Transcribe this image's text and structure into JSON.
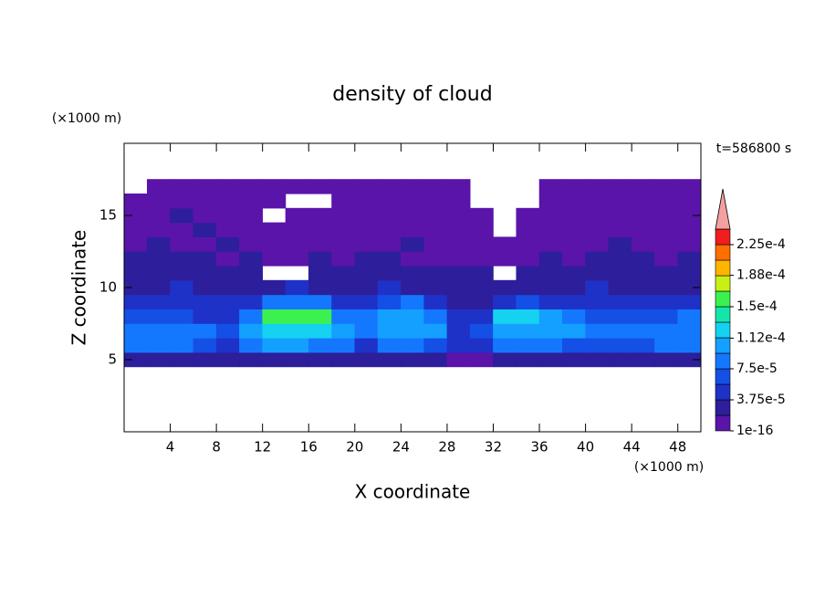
{
  "chart_data": {
    "type": "contour",
    "title": "density of cloud",
    "x_label": "X coordinate",
    "y_label": "Z coordinate",
    "x_unit": "(×1000 m)",
    "y_unit": "(×1000 m)",
    "annotation": "t=586800 s",
    "xlim": [
      0,
      50
    ],
    "ylim": [
      0,
      20
    ],
    "xticks": [
      4,
      8,
      12,
      16,
      20,
      24,
      28,
      32,
      36,
      40,
      44,
      48
    ],
    "yticks": [
      5,
      10,
      15
    ],
    "x": [
      1,
      3,
      5,
      7,
      9,
      11,
      13,
      15,
      17,
      19,
      21,
      23,
      25,
      27,
      29,
      31,
      33,
      35,
      37,
      39,
      41,
      43,
      45,
      47,
      49
    ],
    "y": [
      5,
      6,
      7,
      8,
      9,
      10,
      11,
      12,
      13,
      14,
      15,
      16,
      17
    ],
    "z": [
      [
        3e-05,
        3e-05,
        3e-05,
        3e-05,
        2e-05,
        2e-05,
        2e-05,
        2e-05,
        2e-05,
        2e-05,
        2e-05,
        2e-05,
        2e-05,
        2e-05,
        1e-05,
        1e-05,
        2e-05,
        2e-05,
        2e-05,
        2e-05,
        2e-05,
        2e-05,
        2e-05,
        2e-05,
        2e-05
      ],
      [
        8e-05,
        8e-05,
        8e-05,
        7e-05,
        4e-05,
        9e-05,
        0.0001,
        0.0001,
        9e-05,
        8e-05,
        5e-05,
        8e-05,
        8e-05,
        7e-05,
        4e-05,
        5e-05,
        8e-05,
        9e-05,
        8e-05,
        7e-05,
        7e-05,
        7e-05,
        7e-05,
        8e-05,
        8e-05
      ],
      [
        8e-05,
        9e-05,
        9e-05,
        8e-05,
        6e-05,
        0.00011,
        0.00012,
        0.00012,
        0.00012,
        0.00011,
        9e-05,
        0.0001,
        0.00011,
        0.0001,
        5e-05,
        6e-05,
        0.00011,
        0.00011,
        0.0001,
        0.0001,
        9e-05,
        8e-05,
        8e-05,
        9e-05,
        9e-05
      ],
      [
        6e-05,
        7e-05,
        6e-05,
        5e-05,
        4e-05,
        9e-05,
        0.00015,
        0.00016,
        0.00015,
        9e-05,
        8e-05,
        0.0001,
        0.00011,
        9e-05,
        4e-05,
        4e-05,
        0.00012,
        0.00013,
        0.00011,
        8e-05,
        7e-05,
        6e-05,
        7e-05,
        6e-05,
        8e-05
      ],
      [
        4e-05,
        5e-05,
        4e-05,
        5e-05,
        4e-05,
        4e-05,
        8e-05,
        9e-05,
        9e-05,
        5e-05,
        4e-05,
        6e-05,
        8e-05,
        5e-05,
        3e-05,
        3e-05,
        5e-05,
        7e-05,
        5e-05,
        4e-05,
        4e-05,
        4e-05,
        5e-05,
        4e-05,
        4e-05
      ],
      [
        3e-05,
        3e-05,
        4e-05,
        3e-05,
        3e-05,
        3e-05,
        3e-05,
        4e-05,
        3e-05,
        3e-05,
        3e-05,
        4e-05,
        3e-05,
        3e-05,
        2e-05,
        2e-05,
        3e-05,
        3e-05,
        3e-05,
        3e-05,
        4e-05,
        3e-05,
        3e-05,
        3e-05,
        3e-05
      ],
      [
        2e-05,
        3e-05,
        2e-05,
        2e-05,
        2e-05,
        2e-05,
        0,
        0,
        2e-05,
        2e-05,
        2e-05,
        2e-05,
        2e-05,
        2e-05,
        2e-05,
        2e-05,
        0,
        2e-05,
        2e-05,
        2e-05,
        3e-05,
        2e-05,
        2e-05,
        2e-05,
        2e-05
      ],
      [
        2e-05,
        2e-05,
        2e-05,
        2e-05,
        1e-05,
        2e-05,
        1e-05,
        1e-05,
        2e-05,
        1e-05,
        2e-05,
        2e-05,
        1e-05,
        1e-05,
        1e-05,
        1e-05,
        1e-05,
        1e-05,
        2e-05,
        1e-05,
        2e-05,
        2e-05,
        2e-05,
        1e-05,
        2e-05
      ],
      [
        1e-05,
        2e-05,
        1e-05,
        1e-05,
        2e-05,
        1e-05,
        1e-05,
        1e-05,
        1e-05,
        1e-05,
        1e-05,
        1e-05,
        2e-05,
        1e-05,
        1e-05,
        1e-05,
        1e-05,
        1e-05,
        1e-05,
        1e-05,
        1e-05,
        2e-05,
        1e-05,
        1e-05,
        1e-05
      ],
      [
        1e-05,
        1e-05,
        1e-05,
        2e-05,
        1e-05,
        1e-05,
        1e-05,
        1e-05,
        1e-05,
        1e-05,
        1e-05,
        1e-05,
        1e-05,
        1e-05,
        1e-05,
        1e-05,
        0,
        1e-05,
        1e-05,
        1e-05,
        1e-05,
        1e-05,
        1e-05,
        1e-05,
        1e-05
      ],
      [
        1e-05,
        1e-05,
        2e-05,
        1e-05,
        1e-05,
        1e-05,
        0,
        1e-05,
        1e-05,
        1e-05,
        1e-05,
        1e-05,
        1e-05,
        1e-05,
        1e-05,
        1e-05,
        0,
        1e-05,
        1e-05,
        1e-05,
        1e-05,
        1e-05,
        1e-05,
        1e-05,
        1e-05
      ],
      [
        1e-05,
        1e-05,
        1e-05,
        1e-05,
        1e-05,
        1e-05,
        1e-05,
        0,
        0,
        1e-05,
        1e-05,
        1e-05,
        1e-05,
        1e-05,
        1e-05,
        0,
        0,
        0,
        1e-05,
        1e-05,
        1e-05,
        1e-05,
        1e-05,
        1e-05,
        1e-05
      ],
      [
        0,
        1e-05,
        1e-05,
        1e-05,
        1e-05,
        1e-05,
        1e-05,
        1e-05,
        1e-05,
        1e-05,
        1e-05,
        1e-05,
        1e-05,
        1e-05,
        1e-05,
        0,
        0,
        0,
        1e-05,
        1e-05,
        1e-05,
        1e-05,
        1e-05,
        1e-05,
        1e-05
      ]
    ],
    "levels": [
      1e-16,
      1.875e-05,
      3.75e-05,
      5.625e-05,
      7.5e-05,
      9.375e-05,
      0.0001125,
      0.00013125,
      0.00015,
      0.00016875,
      0.0001875,
      0.00020625,
      0.000225,
      0.00024375
    ],
    "colors": [
      "#5a14aa",
      "#2d1e9b",
      "#1e32c8",
      "#1450e6",
      "#1478ff",
      "#14a0ff",
      "#14d2f0",
      "#14e6aa",
      "#3cf050",
      "#c8f014",
      "#ffb400",
      "#ff6e00",
      "#f01e1e"
    ],
    "extend_color": "#f4a0a0",
    "colorbar_ticks": [
      1e-16,
      {
        "value": 3.75e-05,
        "label": "3.75e-5"
      },
      {
        "value": 7.5e-05,
        "label": "7.5e-5"
      },
      {
        "value": 0.000112,
        "label": "1.12e-4"
      },
      {
        "value": 0.00015,
        "label": "1.5e-4"
      },
      {
        "value": 0.000188,
        "label": "1.88e-4"
      },
      {
        "value": 0.000225,
        "label": "2.25e-4"
      }
    ]
  }
}
